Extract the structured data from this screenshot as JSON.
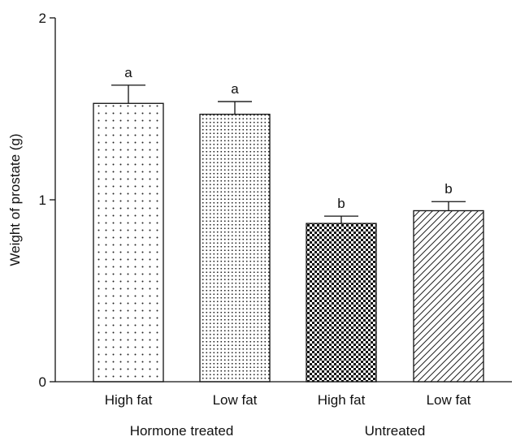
{
  "chart_data": {
    "type": "bar",
    "ylabel": "Weight of prostate  (g)",
    "ylim": [
      0,
      2
    ],
    "yticks": [
      "0",
      "1",
      "2"
    ],
    "categories": [
      "High fat",
      "Low fat",
      "High fat",
      "Low fat"
    ],
    "groups": [
      "Hormone treated",
      "Untreated"
    ],
    "values": [
      1.53,
      1.47,
      0.87,
      0.94
    ],
    "errors": [
      0.1,
      0.07,
      0.04,
      0.05
    ],
    "significance": [
      "a",
      "a",
      "b",
      "b"
    ],
    "patterns": [
      "sparse-dots",
      "dense-dots",
      "checker",
      "diagonal-hatch"
    ],
    "grid": false
  }
}
